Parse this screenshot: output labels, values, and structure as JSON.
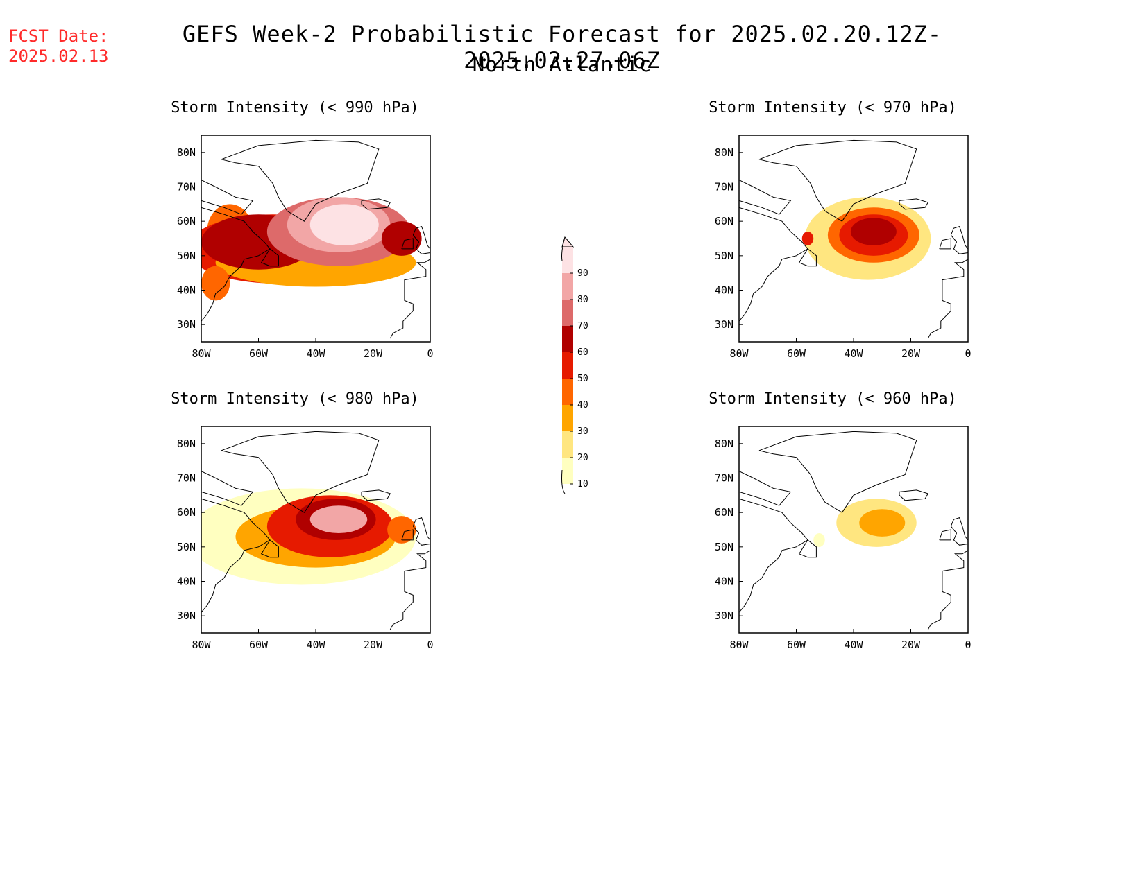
{
  "header": {
    "fcst_label": "FCST Date:",
    "fcst_date": "2025.02.13",
    "title": "GEFS Week-2 Probabilistic Forecast for 2025.02.20.12Z-2025.02.27.06Z",
    "subtitle": "North Atlantic"
  },
  "axes": {
    "lon_ticks": [
      "80W",
      "60W",
      "40W",
      "20W",
      "0"
    ],
    "lat_ticks": [
      "80N",
      "70N",
      "60N",
      "50N",
      "40N",
      "30N"
    ],
    "lon_range": [
      -80,
      0
    ],
    "lat_range": [
      25,
      85
    ]
  },
  "colorbar": {
    "levels": [
      "10",
      "20",
      "30",
      "40",
      "50",
      "60",
      "70",
      "80",
      "90"
    ],
    "colors": [
      "#ffffc0",
      "#ffe680",
      "#ffa500",
      "#ff6600",
      "#e61a00",
      "#b00000",
      "#dd6a6a",
      "#f2a6a6",
      "#fde2e4"
    ]
  },
  "panels": [
    {
      "title": "Storm Intensity (< 990 hPa)",
      "field": [
        {
          "lon": -70,
          "lat": 57,
          "rx": 8,
          "ry": 8,
          "level": 3
        },
        {
          "lon": -55,
          "lat": 52,
          "rx": 30,
          "ry": 10,
          "level": 4
        },
        {
          "lon": -40,
          "lat": 48,
          "rx": 35,
          "ry": 7,
          "level": 2
        },
        {
          "lon": -60,
          "lat": 54,
          "rx": 20,
          "ry": 8,
          "level": 5
        },
        {
          "lon": -32,
          "lat": 57,
          "rx": 25,
          "ry": 10,
          "level": 6
        },
        {
          "lon": -32,
          "lat": 59,
          "rx": 18,
          "ry": 8,
          "level": 7
        },
        {
          "lon": -30,
          "lat": 59,
          "rx": 12,
          "ry": 6,
          "level": 8
        },
        {
          "lon": -10,
          "lat": 55,
          "rx": 7,
          "ry": 5,
          "level": 5
        },
        {
          "lon": -75,
          "lat": 42,
          "rx": 5,
          "ry": 5,
          "level": 3
        }
      ]
    },
    {
      "title": "Storm Intensity (< 970 hPa)",
      "field": [
        {
          "lon": -35,
          "lat": 55,
          "rx": 22,
          "ry": 12,
          "level": 1
        },
        {
          "lon": -33,
          "lat": 56,
          "rx": 16,
          "ry": 8,
          "level": 3
        },
        {
          "lon": -33,
          "lat": 56,
          "rx": 12,
          "ry": 6,
          "level": 4
        },
        {
          "lon": -33,
          "lat": 57,
          "rx": 8,
          "ry": 4,
          "level": 5
        },
        {
          "lon": -56,
          "lat": 55,
          "rx": 2,
          "ry": 2,
          "level": 4
        }
      ]
    },
    {
      "title": "Storm Intensity (< 980 hPa)",
      "field": [
        {
          "lon": -45,
          "lat": 53,
          "rx": 40,
          "ry": 14,
          "level": 0
        },
        {
          "lon": -40,
          "lat": 53,
          "rx": 28,
          "ry": 9,
          "level": 2
        },
        {
          "lon": -35,
          "lat": 56,
          "rx": 22,
          "ry": 9,
          "level": 4
        },
        {
          "lon": -33,
          "lat": 58,
          "rx": 14,
          "ry": 6,
          "level": 5
        },
        {
          "lon": -32,
          "lat": 58,
          "rx": 10,
          "ry": 4,
          "level": 7
        },
        {
          "lon": -10,
          "lat": 55,
          "rx": 5,
          "ry": 4,
          "level": 3
        }
      ]
    },
    {
      "title": "Storm Intensity (< 960 hPa)",
      "field": [
        {
          "lon": -32,
          "lat": 57,
          "rx": 14,
          "ry": 7,
          "level": 1
        },
        {
          "lon": -30,
          "lat": 57,
          "rx": 8,
          "ry": 4,
          "level": 2
        },
        {
          "lon": -52,
          "lat": 52,
          "rx": 2,
          "ry": 2,
          "level": 0
        }
      ]
    }
  ]
}
